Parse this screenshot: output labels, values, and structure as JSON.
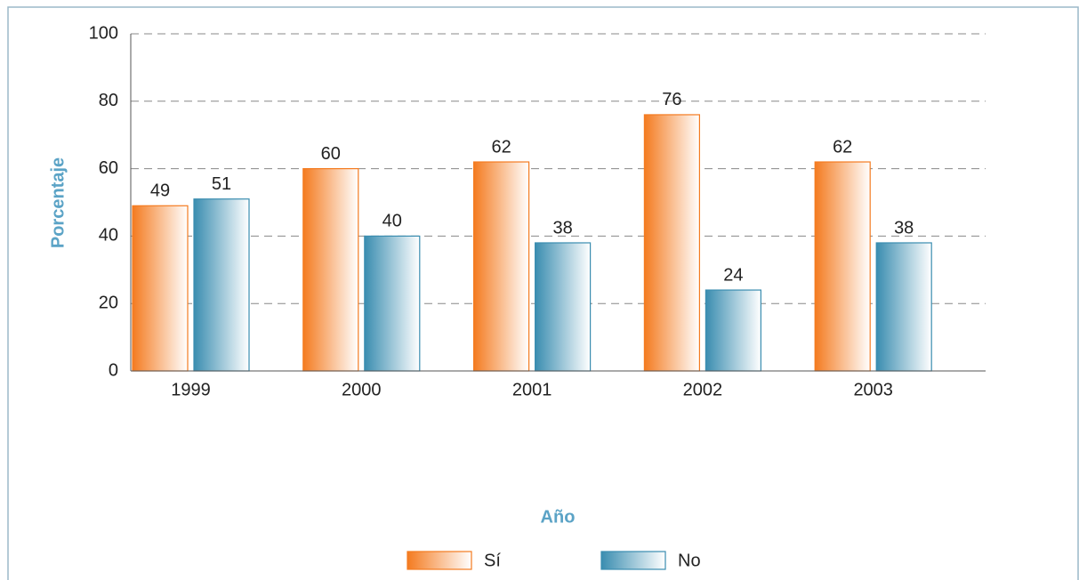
{
  "chart_data": {
    "type": "bar",
    "x_label": "Año",
    "y_label": "Porcentaje",
    "categories": [
      "1999",
      "2000",
      "2001",
      "2002",
      "2003"
    ],
    "series": [
      {
        "name": "Sí",
        "color": "#f47b20",
        "values": [
          49,
          60,
          62,
          76,
          62
        ]
      },
      {
        "name": "No",
        "color": "#3a8db0",
        "values": [
          51,
          40,
          38,
          24,
          38
        ]
      }
    ],
    "ylim": [
      0,
      100
    ],
    "yticks": [
      0,
      20,
      40,
      60,
      80,
      100
    ],
    "grid": true,
    "legend": "bottom"
  }
}
